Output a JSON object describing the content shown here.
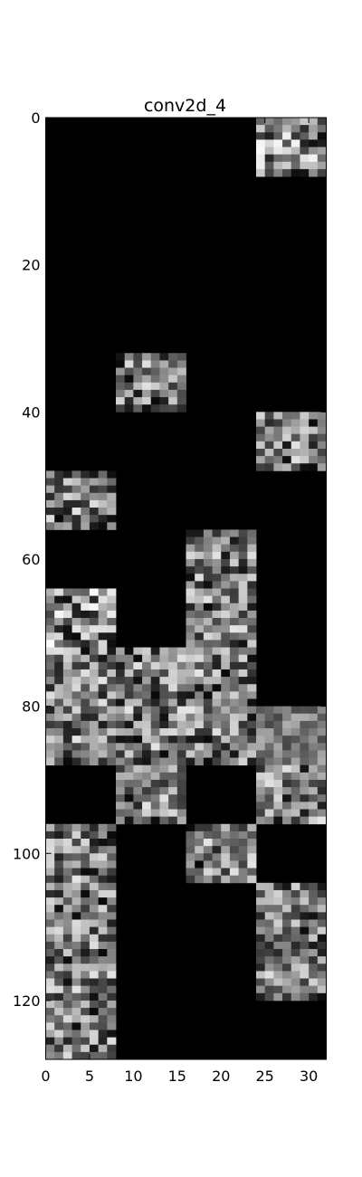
{
  "chart_data": {
    "type": "heatmap",
    "title": "conv2d_4",
    "xlabel": "",
    "ylabel": "",
    "colormap": "grayscale",
    "background_color": "#000000",
    "x_range": [
      0,
      32
    ],
    "y_range": [
      0,
      128
    ],
    "y_inverted": true,
    "x_ticks": [
      0,
      5,
      10,
      15,
      20,
      25,
      30
    ],
    "y_ticks": [
      0,
      20,
      40,
      60,
      80,
      100,
      120
    ],
    "tile_size": 8,
    "grid": {
      "columns": 4,
      "rows": 16
    },
    "active_tiles": [
      {
        "row": 0,
        "col": 3,
        "seed": 3,
        "gain": 1.0
      },
      {
        "row": 4,
        "col": 1,
        "seed": 7,
        "gain": 0.9
      },
      {
        "row": 5,
        "col": 3,
        "seed": 11,
        "gain": 0.9
      },
      {
        "row": 6,
        "col": 0,
        "seed": 13,
        "gain": 0.9
      },
      {
        "row": 7,
        "col": 2,
        "seed": 17,
        "gain": 0.9
      },
      {
        "row": 8,
        "col": 0,
        "seed": 19,
        "gain": 1.0
      },
      {
        "row": 8,
        "col": 2,
        "seed": 23,
        "gain": 0.9
      },
      {
        "row": 9,
        "col": 0,
        "seed": 29,
        "gain": 0.9
      },
      {
        "row": 9,
        "col": 1,
        "seed": 31,
        "gain": 0.9
      },
      {
        "row": 9,
        "col": 2,
        "seed": 37,
        "gain": 0.9
      },
      {
        "row": 10,
        "col": 0,
        "seed": 41,
        "gain": 0.9
      },
      {
        "row": 10,
        "col": 1,
        "seed": 43,
        "gain": 0.9
      },
      {
        "row": 10,
        "col": 2,
        "seed": 47,
        "gain": 0.9
      },
      {
        "row": 10,
        "col": 3,
        "seed": 53,
        "gain": 0.45
      },
      {
        "row": 11,
        "col": 1,
        "seed": 59,
        "gain": 0.9
      },
      {
        "row": 11,
        "col": 3,
        "seed": 61,
        "gain": 0.9
      },
      {
        "row": 12,
        "col": 0,
        "seed": 67,
        "gain": 0.9
      },
      {
        "row": 12,
        "col": 2,
        "seed": 71,
        "gain": 0.9
      },
      {
        "row": 13,
        "col": 0,
        "seed": 73,
        "gain": 0.9
      },
      {
        "row": 13,
        "col": 3,
        "seed": 79,
        "gain": 0.9
      },
      {
        "row": 14,
        "col": 0,
        "seed": 83,
        "gain": 0.9
      },
      {
        "row": 14,
        "col": 3,
        "seed": 89,
        "gain": 0.9
      },
      {
        "row": 15,
        "col": 0,
        "seed": 97,
        "gain": 0.9
      }
    ]
  }
}
